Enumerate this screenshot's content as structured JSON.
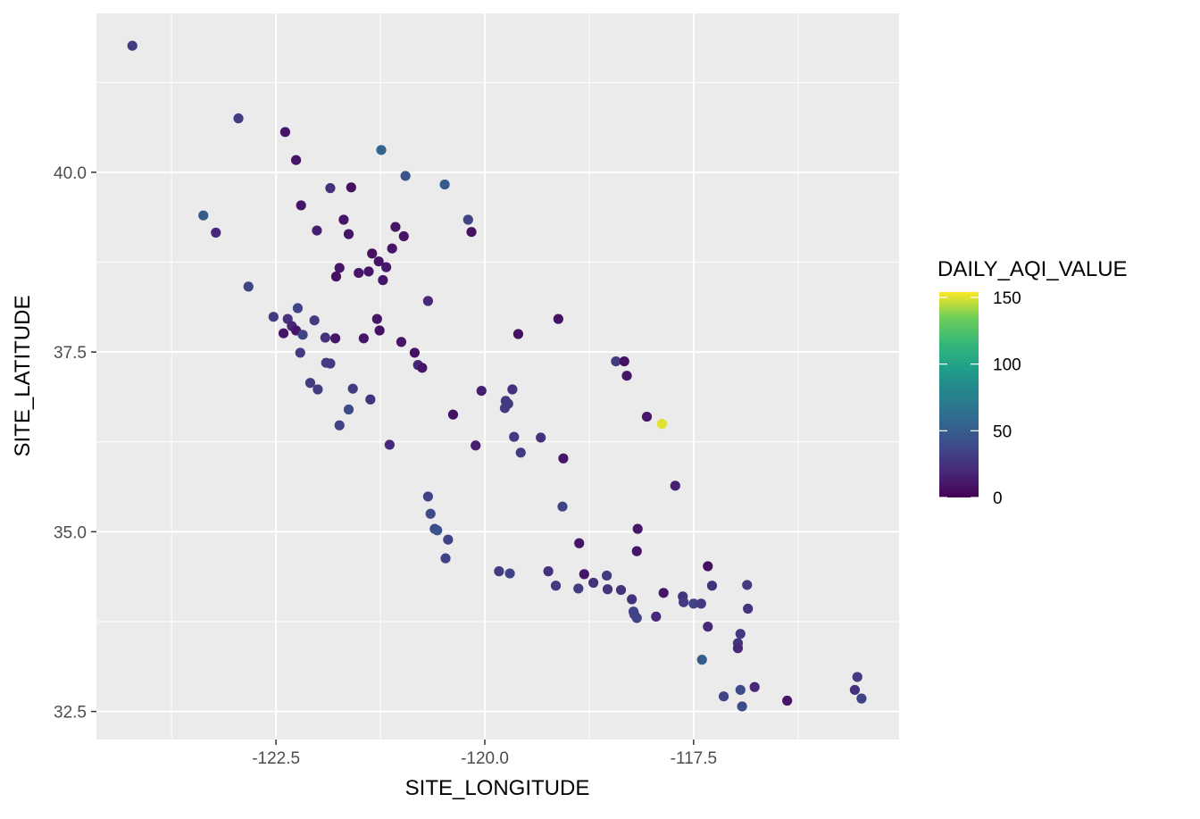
{
  "chart_data": {
    "type": "scatter",
    "title": "",
    "xlabel": "SITE_LONGITUDE",
    "ylabel": "SITE_LATITUDE",
    "xlim": [
      -124.65,
      -115.04
    ],
    "ylim": [
      32.11,
      42.21
    ],
    "x_ticks": [
      -122.5,
      -120.0,
      -117.5
    ],
    "x_tick_labels": [
      "-122.5",
      "-120.0",
      "-117.5"
    ],
    "y_ticks": [
      32.5,
      35.0,
      37.5,
      40.0
    ],
    "y_tick_labels": [
      "32.5",
      "35.0",
      "37.5",
      "40.0"
    ],
    "grid": true,
    "legend": {
      "title": "DAILY_AQI_VALUE",
      "position": "right",
      "type": "colorbar",
      "palette": "viridis",
      "range": [
        0,
        154
      ],
      "ticks": [
        0,
        50,
        100,
        150
      ],
      "tick_labels": [
        "0",
        "50",
        "100",
        "150"
      ]
    },
    "colors": [
      "#440154",
      "#482878",
      "#3e4a89",
      "#31688e",
      "#26828e",
      "#1f9e89",
      "#35b779",
      "#6ece58",
      "#fde725"
    ],
    "columns": [
      "SITE_LONGITUDE",
      "SITE_LATITUDE",
      "DAILY_AQI_VALUE"
    ],
    "points": [
      [
        -124.22,
        41.76,
        30
      ],
      [
        -122.95,
        40.75,
        30
      ],
      [
        -122.39,
        40.56,
        10
      ],
      [
        -122.26,
        40.17,
        10
      ],
      [
        -121.24,
        40.31,
        55
      ],
      [
        -120.95,
        39.95,
        45
      ],
      [
        -120.48,
        39.83,
        50
      ],
      [
        -123.37,
        39.4,
        50
      ],
      [
        -123.22,
        39.16,
        20
      ],
      [
        -122.2,
        39.54,
        10
      ],
      [
        -121.85,
        39.78,
        25
      ],
      [
        -121.6,
        39.79,
        8
      ],
      [
        -121.69,
        39.34,
        10
      ],
      [
        -121.63,
        39.14,
        10
      ],
      [
        -122.01,
        39.19,
        15
      ],
      [
        -120.2,
        39.34,
        35
      ],
      [
        -120.16,
        39.17,
        8
      ],
      [
        -121.07,
        39.24,
        10
      ],
      [
        -120.97,
        39.11,
        10
      ],
      [
        -121.11,
        38.94,
        10
      ],
      [
        -122.83,
        38.41,
        35
      ],
      [
        -121.74,
        38.67,
        10
      ],
      [
        -121.78,
        38.55,
        8
      ],
      [
        -121.51,
        38.6,
        10
      ],
      [
        -121.39,
        38.62,
        10
      ],
      [
        -121.35,
        38.87,
        8
      ],
      [
        -121.27,
        38.76,
        10
      ],
      [
        -121.18,
        38.68,
        12
      ],
      [
        -121.22,
        38.5,
        10
      ],
      [
        -120.68,
        38.21,
        20
      ],
      [
        -122.53,
        37.99,
        30
      ],
      [
        -122.36,
        37.96,
        25
      ],
      [
        -122.24,
        38.11,
        35
      ],
      [
        -122.41,
        37.76,
        10
      ],
      [
        -122.31,
        37.86,
        18
      ],
      [
        -122.26,
        37.8,
        10
      ],
      [
        -122.18,
        37.74,
        35
      ],
      [
        -122.04,
        37.94,
        30
      ],
      [
        -121.91,
        37.7,
        25
      ],
      [
        -121.79,
        37.69,
        10
      ],
      [
        -121.45,
        37.69,
        10
      ],
      [
        -121.29,
        37.96,
        10
      ],
      [
        -121.26,
        37.8,
        8
      ],
      [
        -121.0,
        37.64,
        10
      ],
      [
        -120.84,
        37.49,
        8
      ],
      [
        -122.21,
        37.49,
        30
      ],
      [
        -121.9,
        37.35,
        30
      ],
      [
        -121.85,
        37.34,
        30
      ],
      [
        -121.58,
        36.99,
        30
      ],
      [
        -122.09,
        37.07,
        30
      ],
      [
        -122.0,
        36.98,
        30
      ],
      [
        -121.63,
        36.7,
        40
      ],
      [
        -121.74,
        36.48,
        35
      ],
      [
        -121.37,
        36.84,
        25
      ],
      [
        -121.14,
        36.21,
        20
      ],
      [
        -120.8,
        37.32,
        20
      ],
      [
        -120.75,
        37.28,
        10
      ],
      [
        -120.38,
        36.63,
        8
      ],
      [
        -120.04,
        36.96,
        15
      ],
      [
        -120.11,
        36.2,
        15
      ],
      [
        -119.6,
        37.75,
        8
      ],
      [
        -119.12,
        37.96,
        8
      ],
      [
        -119.67,
        36.98,
        25
      ],
      [
        -119.75,
        36.82,
        30
      ],
      [
        -119.72,
        36.78,
        30
      ],
      [
        -119.76,
        36.72,
        30
      ],
      [
        -119.65,
        36.32,
        30
      ],
      [
        -119.57,
        36.1,
        30
      ],
      [
        -119.33,
        36.31,
        25
      ],
      [
        -119.06,
        36.02,
        10
      ],
      [
        -118.43,
        37.37,
        30
      ],
      [
        -118.33,
        37.37,
        8
      ],
      [
        -118.3,
        37.17,
        10
      ],
      [
        -118.06,
        36.6,
        10
      ],
      [
        -117.88,
        36.5,
        150
      ],
      [
        -117.72,
        35.64,
        15
      ],
      [
        -120.68,
        35.49,
        35
      ],
      [
        -120.65,
        35.25,
        40
      ],
      [
        -120.6,
        35.04,
        40
      ],
      [
        -120.57,
        35.02,
        45
      ],
      [
        -120.44,
        34.89,
        35
      ],
      [
        -120.47,
        34.63,
        35
      ],
      [
        -119.07,
        35.35,
        35
      ],
      [
        -118.87,
        34.84,
        10
      ],
      [
        -118.17,
        35.04,
        10
      ],
      [
        -118.18,
        34.73,
        10
      ],
      [
        -119.83,
        34.45,
        30
      ],
      [
        -119.7,
        34.42,
        35
      ],
      [
        -119.24,
        34.45,
        25
      ],
      [
        -119.15,
        34.25,
        30
      ],
      [
        -118.81,
        34.41,
        10
      ],
      [
        -118.88,
        34.21,
        30
      ],
      [
        -118.7,
        34.29,
        25
      ],
      [
        -118.54,
        34.39,
        30
      ],
      [
        -118.53,
        34.2,
        25
      ],
      [
        -118.37,
        34.19,
        25
      ],
      [
        -118.24,
        34.06,
        25
      ],
      [
        -118.22,
        33.89,
        35
      ],
      [
        -118.21,
        33.85,
        35
      ],
      [
        -118.18,
        33.8,
        35
      ],
      [
        -117.95,
        33.82,
        20
      ],
      [
        -117.86,
        34.15,
        10
      ],
      [
        -117.63,
        34.1,
        25
      ],
      [
        -117.62,
        34.02,
        30
      ],
      [
        -117.5,
        34.0,
        35
      ],
      [
        -117.41,
        34.0,
        30
      ],
      [
        -117.33,
        34.52,
        8
      ],
      [
        -117.28,
        34.25,
        25
      ],
      [
        -116.86,
        34.26,
        30
      ],
      [
        -116.85,
        33.93,
        25
      ],
      [
        -117.33,
        33.68,
        20
      ],
      [
        -116.94,
        33.58,
        30
      ],
      [
        -116.97,
        33.45,
        25
      ],
      [
        -116.97,
        33.38,
        20
      ],
      [
        -117.4,
        33.22,
        50
      ],
      [
        -117.14,
        32.71,
        35
      ],
      [
        -116.94,
        32.8,
        40
      ],
      [
        -116.92,
        32.57,
        40
      ],
      [
        -116.77,
        32.84,
        20
      ],
      [
        -116.38,
        32.65,
        10
      ],
      [
        -115.54,
        32.98,
        30
      ],
      [
        -115.57,
        32.8,
        25
      ],
      [
        -115.49,
        32.68,
        35
      ]
    ]
  }
}
